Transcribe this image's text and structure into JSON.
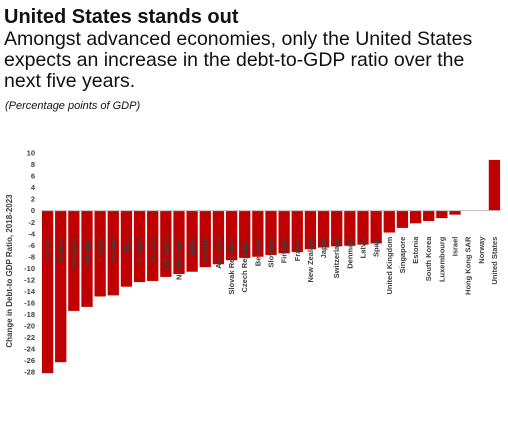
{
  "header": {
    "title": "United States stands out",
    "subtitle": "Amongst advanced economies, only the United States expects an increase in the debt-to-GDP ratio over the next five years.",
    "note": "(Percentage points of GDP)"
  },
  "colors": {
    "bar": "#c00000",
    "axis": "#bfbfbf",
    "text": "#404040"
  },
  "chart_data": {
    "type": "bar",
    "title": "",
    "xlabel": "",
    "ylabel": "Change in Debt-to GDP Ratio, 2018-2023",
    "ylim": [
      -28,
      10
    ],
    "yticks": [
      10,
      8,
      6,
      4,
      2,
      0,
      -2,
      -4,
      -6,
      -8,
      -10,
      -12,
      -14,
      -16,
      -18,
      -20,
      -22,
      -24,
      -26,
      -28
    ],
    "grid": false,
    "legend": "none",
    "categories": [
      "Cyprus",
      "Greece",
      "Germany",
      "Portugal",
      "Iceland",
      "Ireland",
      "Italy",
      "Canada",
      "Austria",
      "Lithuania",
      "Netherlands",
      "Malta",
      "Sweden",
      "Australia",
      "Slovak Republic",
      "Czech Republic",
      "Belgium",
      "Slovenia",
      "Finland",
      "France",
      "New Zealand",
      "Japan",
      "Switzerland",
      "Denmark",
      "Latvia",
      "Spain",
      "United Kingdom",
      "Singapore",
      "Estonia",
      "South Korea",
      "Luxembourg",
      "Israel",
      "Hong Kong SAR",
      "Norway",
      "United States"
    ],
    "values": [
      -28.2,
      -26.3,
      -17.4,
      -16.7,
      -14.9,
      -14.7,
      -13.2,
      -12.4,
      -12.2,
      -11.5,
      -11.0,
      -10.6,
      -9.8,
      -9.3,
      -8.6,
      -8.2,
      -8.0,
      -7.7,
      -7.4,
      -7.2,
      -6.7,
      -6.4,
      -6.2,
      -6.1,
      -5.9,
      -5.7,
      -3.8,
      -3.0,
      -2.2,
      -1.8,
      -1.3,
      -0.7,
      0.0,
      0.0,
      8.8
    ]
  }
}
